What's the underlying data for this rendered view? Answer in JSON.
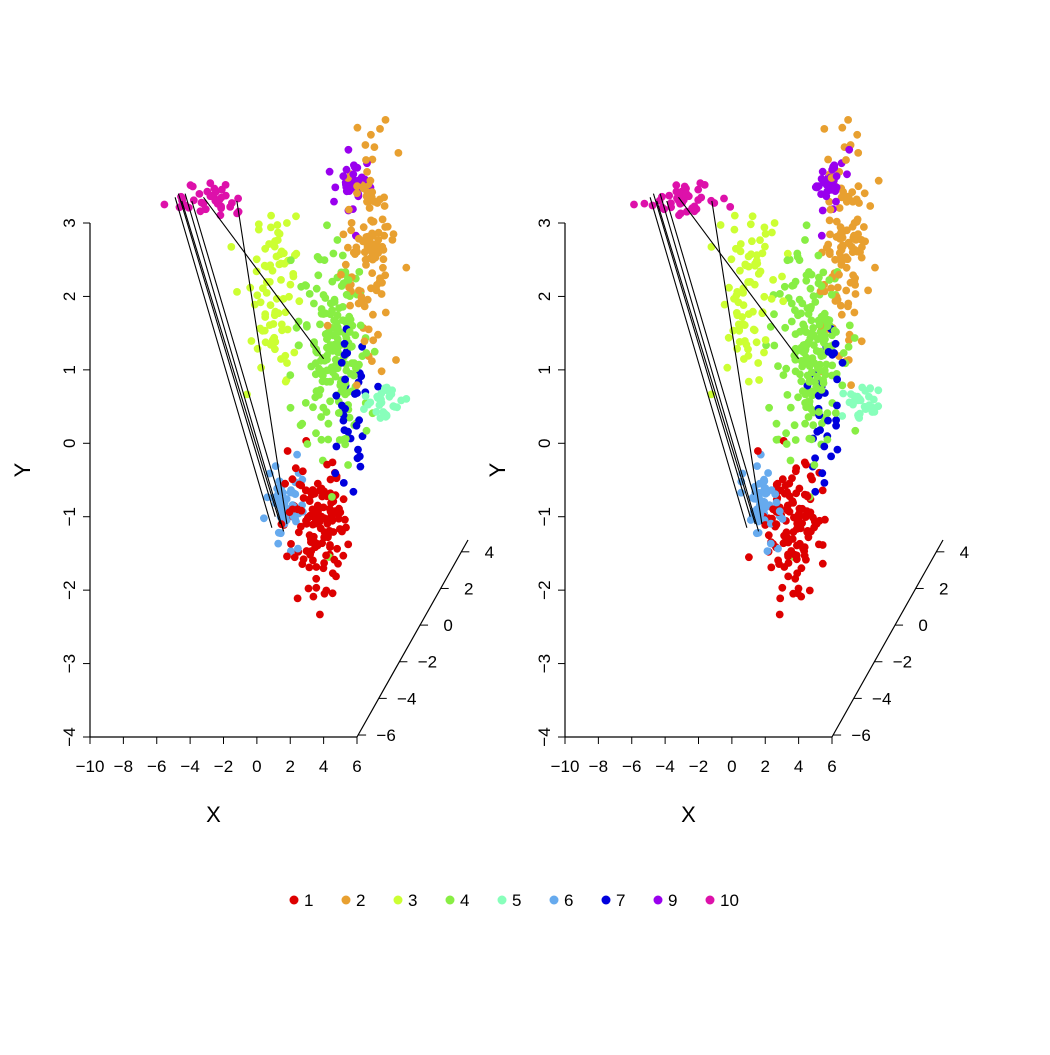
{
  "chart_data": {
    "type": "scatter",
    "subtype": "3d-scatter-stereo-pair",
    "panels": 2,
    "axes": {
      "x": {
        "label": "X",
        "range": [
          -10,
          6
        ],
        "ticks": [
          -10,
          -8,
          -6,
          -4,
          -2,
          0,
          2,
          4,
          6
        ],
        "tick_labels": [
          "−10",
          "−8",
          "−6",
          "−4",
          "−2",
          "0",
          "2",
          "4",
          "6"
        ]
      },
      "y": {
        "label": "Y",
        "range": [
          -4,
          3
        ],
        "ticks": [
          -4,
          -3,
          -2,
          -1,
          0,
          1,
          2,
          3
        ],
        "tick_labels": [
          "−4",
          "−3",
          "−2",
          "−1",
          "0",
          "1",
          "2",
          "3"
        ]
      },
      "z": {
        "label": "",
        "range": [
          -6,
          4
        ],
        "ticks": [
          -6,
          -4,
          -2,
          0,
          2,
          4
        ],
        "tick_labels": [
          "−6",
          "−4",
          "−2",
          "0",
          "2",
          "4"
        ]
      }
    },
    "grid": false,
    "legend_position": "bottom",
    "series": [
      {
        "name": "1",
        "color": "#DD0000",
        "cx": 3.6,
        "cy": -1.1,
        "sx": 0.9,
        "sy": 0.45,
        "n": 130
      },
      {
        "name": "2",
        "color": "#E8A030",
        "cx": 6.8,
        "cy": 2.7,
        "sx": 0.6,
        "sy": 0.75,
        "n": 120
      },
      {
        "name": "3",
        "color": "#CCFF33",
        "cx": 0.9,
        "cy": 2.1,
        "sx": 0.8,
        "sy": 0.55,
        "n": 80
      },
      {
        "name": "4",
        "color": "#88EE44",
        "cx": 4.6,
        "cy": 1.3,
        "sx": 1.0,
        "sy": 0.7,
        "n": 190
      },
      {
        "name": "5",
        "color": "#88FFBB",
        "cx": 7.7,
        "cy": 0.55,
        "sx": 0.4,
        "sy": 0.12,
        "n": 30
      },
      {
        "name": "6",
        "color": "#66AAEE",
        "cx": 1.7,
        "cy": -0.8,
        "sx": 0.45,
        "sy": 0.3,
        "n": 55
      },
      {
        "name": "7",
        "color": "#0000DD",
        "cx": 5.6,
        "cy": 0.6,
        "sx": 0.35,
        "sy": 0.55,
        "n": 35
      },
      {
        "name": "9",
        "color": "#9900EE",
        "cx": 5.8,
        "cy": 3.55,
        "sx": 0.3,
        "sy": 0.22,
        "n": 35
      },
      {
        "name": "10",
        "color": "#DD11AA",
        "cx": -2.6,
        "cy": 3.3,
        "sx": 1.1,
        "sy": 0.12,
        "n": 40
      }
    ],
    "connecting_lines": [
      [
        [
          -4.9,
          3.35
        ],
        [
          0.9,
          -1.15
        ]
      ],
      [
        [
          -4.7,
          3.4
        ],
        [
          1.1,
          -1.0
        ]
      ],
      [
        [
          -4.5,
          3.3
        ],
        [
          1.4,
          -1.1
        ]
      ],
      [
        [
          -4.3,
          3.4
        ],
        [
          1.6,
          -1.2
        ]
      ],
      [
        [
          -3.9,
          3.3
        ],
        [
          1.3,
          -0.7
        ]
      ],
      [
        [
          -1.2,
          3.3
        ],
        [
          1.8,
          -1.1
        ]
      ],
      [
        [
          -3.2,
          3.35
        ],
        [
          4.0,
          1.15
        ]
      ]
    ]
  },
  "legend": {
    "items": [
      {
        "label": "1",
        "color": "#DD0000"
      },
      {
        "label": "2",
        "color": "#E8A030"
      },
      {
        "label": "3",
        "color": "#CCFF33"
      },
      {
        "label": "4",
        "color": "#88EE44"
      },
      {
        "label": "5",
        "color": "#88FFBB"
      },
      {
        "label": "6",
        "color": "#66AAEE"
      },
      {
        "label": "7",
        "color": "#0000DD"
      },
      {
        "label": "9",
        "color": "#9900EE"
      },
      {
        "label": "10",
        "color": "#DD11AA"
      }
    ]
  }
}
